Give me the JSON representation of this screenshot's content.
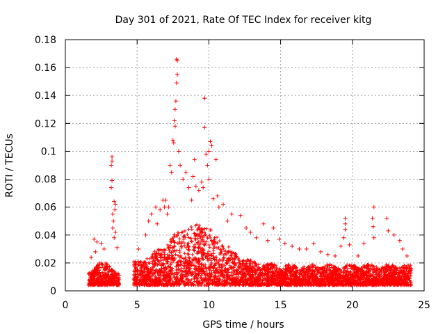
{
  "chart_data": {
    "type": "scatter",
    "title": "Day 301 of 2021, Rate Of TEC Index for receiver kitg",
    "xlabel": "GPS time / hours",
    "ylabel": "ROTI / TECUs",
    "xlim": [
      0,
      25
    ],
    "ylim": [
      0,
      0.18
    ],
    "x_ticks": [
      0,
      5,
      10,
      15,
      20,
      25
    ],
    "x_tick_labels": [
      "0",
      "5",
      "10",
      "15",
      "20",
      "25"
    ],
    "y_ticks": [
      0,
      0.02,
      0.04,
      0.06,
      0.08,
      0.1,
      0.12,
      0.14,
      0.16,
      0.18
    ],
    "y_tick_labels": [
      "0",
      "0.02",
      "0.04",
      "0.06",
      "0.08",
      "0.1",
      "0.12",
      "0.14",
      "0.16",
      "0.18"
    ],
    "grid": true,
    "marker": "+",
    "color": "#ff0000",
    "data_gaps_hours": [
      [
        0,
        1.5
      ],
      [
        3.8,
        4.8
      ]
    ],
    "series": [
      {
        "name": "ROTI",
        "points": [
          [
            3.25,
            0.096
          ],
          [
            3.25,
            0.093
          ],
          [
            3.2,
            0.09
          ],
          [
            3.25,
            0.079
          ],
          [
            3.2,
            0.074
          ],
          [
            3.4,
            0.064
          ],
          [
            3.5,
            0.062
          ],
          [
            3.45,
            0.058
          ],
          [
            3.3,
            0.055
          ],
          [
            3.35,
            0.05
          ],
          [
            3.3,
            0.045
          ],
          [
            3.5,
            0.042
          ],
          [
            3.4,
            0.038
          ],
          [
            2.0,
            0.037
          ],
          [
            2.2,
            0.035
          ],
          [
            2.5,
            0.034
          ],
          [
            2.7,
            0.03
          ],
          [
            1.8,
            0.024
          ],
          [
            2.1,
            0.028
          ],
          [
            3.6,
            0.031
          ],
          [
            5.1,
            0.03
          ],
          [
            5.6,
            0.04
          ],
          [
            5.8,
            0.05
          ],
          [
            6.0,
            0.055
          ],
          [
            6.3,
            0.06
          ],
          [
            6.4,
            0.048
          ],
          [
            6.6,
            0.058
          ],
          [
            6.8,
            0.065
          ],
          [
            6.9,
            0.06
          ],
          [
            7.0,
            0.065
          ],
          [
            7.1,
            0.055
          ],
          [
            7.2,
            0.06
          ],
          [
            7.4,
            0.085
          ],
          [
            7.5,
            0.108
          ],
          [
            7.55,
            0.106
          ],
          [
            7.6,
            0.122
          ],
          [
            7.65,
            0.13
          ],
          [
            7.7,
            0.136
          ],
          [
            7.75,
            0.166
          ],
          [
            7.8,
            0.165
          ],
          [
            7.8,
            0.155
          ],
          [
            7.75,
            0.149
          ],
          [
            7.65,
            0.118
          ],
          [
            7.3,
            0.09
          ],
          [
            7.9,
            0.1
          ],
          [
            8.0,
            0.09
          ],
          [
            8.2,
            0.08
          ],
          [
            8.4,
            0.085
          ],
          [
            8.6,
            0.074
          ],
          [
            8.8,
            0.065
          ],
          [
            8.9,
            0.082
          ],
          [
            9.0,
            0.094
          ],
          [
            9.1,
            0.075
          ],
          [
            9.3,
            0.072
          ],
          [
            9.5,
            0.078
          ],
          [
            9.6,
            0.074
          ],
          [
            9.7,
            0.138
          ],
          [
            9.7,
            0.117
          ],
          [
            9.8,
            0.098
          ],
          [
            9.9,
            0.09
          ],
          [
            10.0,
            0.1
          ],
          [
            10.1,
            0.107
          ],
          [
            10.2,
            0.104
          ],
          [
            10.0,
            0.08
          ],
          [
            10.3,
            0.066
          ],
          [
            10.5,
            0.094
          ],
          [
            10.6,
            0.068
          ],
          [
            10.7,
            0.06
          ],
          [
            11.0,
            0.062
          ],
          [
            11.3,
            0.05
          ],
          [
            11.6,
            0.055
          ],
          [
            12.2,
            0.054
          ],
          [
            12.6,
            0.045
          ],
          [
            12.9,
            0.042
          ],
          [
            13.3,
            0.038
          ],
          [
            13.8,
            0.048
          ],
          [
            14.1,
            0.036
          ],
          [
            14.5,
            0.045
          ],
          [
            14.9,
            0.037
          ],
          [
            15.3,
            0.034
          ],
          [
            15.8,
            0.032
          ],
          [
            16.3,
            0.03
          ],
          [
            16.8,
            0.03
          ],
          [
            17.3,
            0.034
          ],
          [
            17.8,
            0.028
          ],
          [
            18.3,
            0.026
          ],
          [
            18.8,
            0.025
          ],
          [
            19.2,
            0.032
          ],
          [
            19.5,
            0.052
          ],
          [
            19.5,
            0.048
          ],
          [
            19.5,
            0.044
          ],
          [
            19.4,
            0.038
          ],
          [
            19.8,
            0.033
          ],
          [
            20.4,
            0.025
          ],
          [
            20.8,
            0.034
          ],
          [
            21.5,
            0.06
          ],
          [
            21.4,
            0.052
          ],
          [
            21.45,
            0.046
          ],
          [
            21.5,
            0.038
          ],
          [
            22.4,
            0.052
          ],
          [
            22.5,
            0.043
          ],
          [
            22.9,
            0.04
          ],
          [
            23.3,
            0.036
          ],
          [
            23.5,
            0.03
          ],
          [
            23.8,
            0.025
          ]
        ]
      }
    ]
  }
}
